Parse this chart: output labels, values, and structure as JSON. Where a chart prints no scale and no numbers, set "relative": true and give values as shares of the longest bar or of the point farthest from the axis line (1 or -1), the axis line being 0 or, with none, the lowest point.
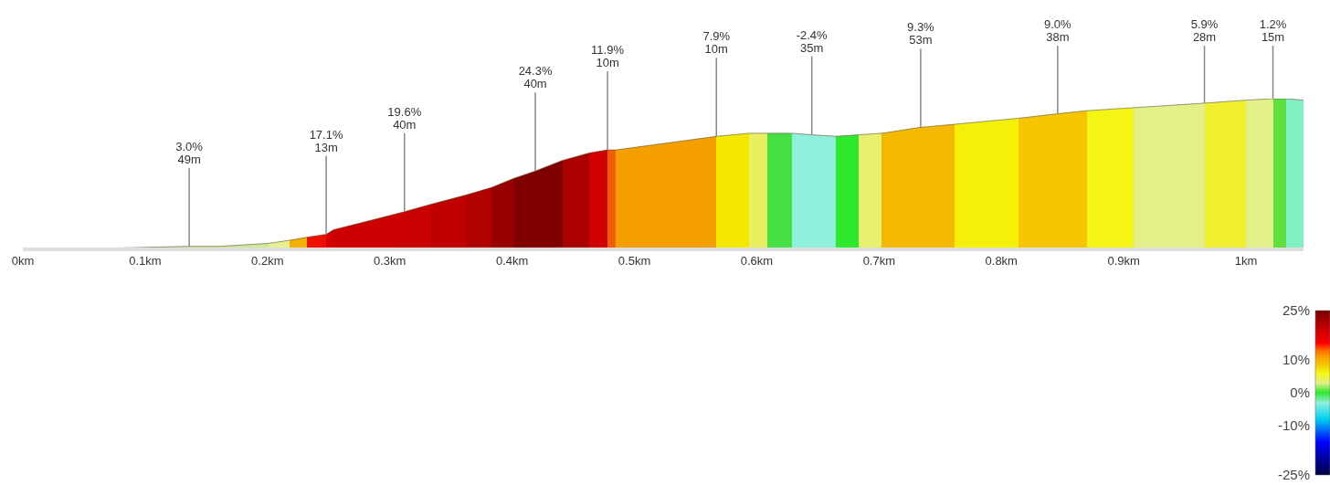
{
  "chart_data": {
    "type": "area",
    "relative": true,
    "x": [
      0,
      0.05,
      0.083,
      0.136,
      0.161,
      0.201,
      0.218,
      0.232,
      0.248,
      0.254,
      0.293,
      0.312,
      0.334,
      0.362,
      0.383,
      0.401,
      0.419,
      0.441,
      0.463,
      0.478,
      0.485,
      0.531,
      0.567,
      0.594,
      0.609,
      0.629,
      0.645,
      0.665,
      0.683,
      0.702,
      0.734,
      0.762,
      0.814,
      0.846,
      0.87,
      0.908,
      0.966,
      1.0,
      1.022,
      1.033,
      1.047
    ],
    "values": [
      0.01,
      0,
      0.01,
      0.02,
      0.02,
      0.04,
      0.06,
      0.08,
      0.1,
      0.13,
      0.21,
      0.25,
      0.3,
      0.36,
      0.41,
      0.47,
      0.52,
      0.59,
      0.64,
      0.66,
      0.66,
      0.71,
      0.75,
      0.77,
      0.77,
      0.77,
      0.76,
      0.75,
      0.76,
      0.77,
      0.81,
      0.83,
      0.87,
      0.9,
      0.92,
      0.94,
      0.97,
      0.99,
      1.0,
      1.0,
      0.99
    ],
    "colors": [
      "#7fe0c0",
      "#2ecc2e",
      "#d8e890",
      "#d8e890",
      "#cfe898",
      "#e6f090",
      "#f5b000",
      "#f01000",
      "#d40000",
      "#cc0000",
      "#cc0000",
      "#c80000",
      "#c00000",
      "#b00000",
      "#990000",
      "#800000",
      "#800000",
      "#aa0000",
      "#d00000",
      "#f06000",
      "#f5a000",
      "#f5a000",
      "#f5e800",
      "#e8ef60",
      "#46e046",
      "#8ff0dc",
      "#8ff0dc",
      "#2ee82e",
      "#e8f070",
      "#f5b800",
      "#f5b800",
      "#f5f00a",
      "#f6c400",
      "#f6c400",
      "#f5f515",
      "#e3ef88",
      "#f0f030",
      "#e3ef88",
      "#60e040",
      "#80f0c0",
      "#80f0c0"
    ],
    "xlim": [
      0,
      1.047
    ],
    "xticks": [
      {
        "value": 0,
        "label": "0km"
      },
      {
        "value": 0.1,
        "label": "0.1km"
      },
      {
        "value": 0.2,
        "label": "0.2km"
      },
      {
        "value": 0.3,
        "label": "0.3km"
      },
      {
        "value": 0.4,
        "label": "0.4km"
      },
      {
        "value": 0.5,
        "label": "0.5km"
      },
      {
        "value": 0.6,
        "label": "0.6km"
      },
      {
        "value": 0.7,
        "label": "0.7km"
      },
      {
        "value": 0.8,
        "label": "0.8km"
      },
      {
        "value": 0.9,
        "label": "0.9km"
      },
      {
        "value": 1,
        "label": "1km"
      }
    ],
    "clim": [
      -25,
      25
    ],
    "cticks": [
      {
        "value": 25,
        "label": "25%"
      },
      {
        "value": 10,
        "label": "10%"
      },
      {
        "value": 0,
        "label": "0%"
      },
      {
        "value": -10,
        "label": "-10%"
      },
      {
        "value": -25,
        "label": "-25%"
      }
    ],
    "annotations": [
      {
        "text": "3.0%\n49m",
        "x": 0.136,
        "y": 0.02
      },
      {
        "text": "17.1%\n13m",
        "x": 0.248,
        "y": 0.1
      },
      {
        "text": "19.6%\n40m",
        "x": 0.312,
        "y": 0.25
      },
      {
        "text": "24.3%\n40m",
        "x": 0.419,
        "y": 0.52
      },
      {
        "text": "11.9%\n10m",
        "x": 0.478,
        "y": 0.66
      },
      {
        "text": "7.9%\n10m",
        "x": 0.567,
        "y": 0.75
      },
      {
        "text": "-2.4%\n35m",
        "x": 0.645,
        "y": 0.76
      },
      {
        "text": "9.3%\n53m",
        "x": 0.734,
        "y": 0.81
      },
      {
        "text": "9.0%\n38m",
        "x": 0.846,
        "y": 0.9
      },
      {
        "text": "5.9%\n28m",
        "x": 0.966,
        "y": 0.97
      },
      {
        "text": "1.2%\n15m",
        "x": 1.022,
        "y": 1.0
      }
    ]
  }
}
